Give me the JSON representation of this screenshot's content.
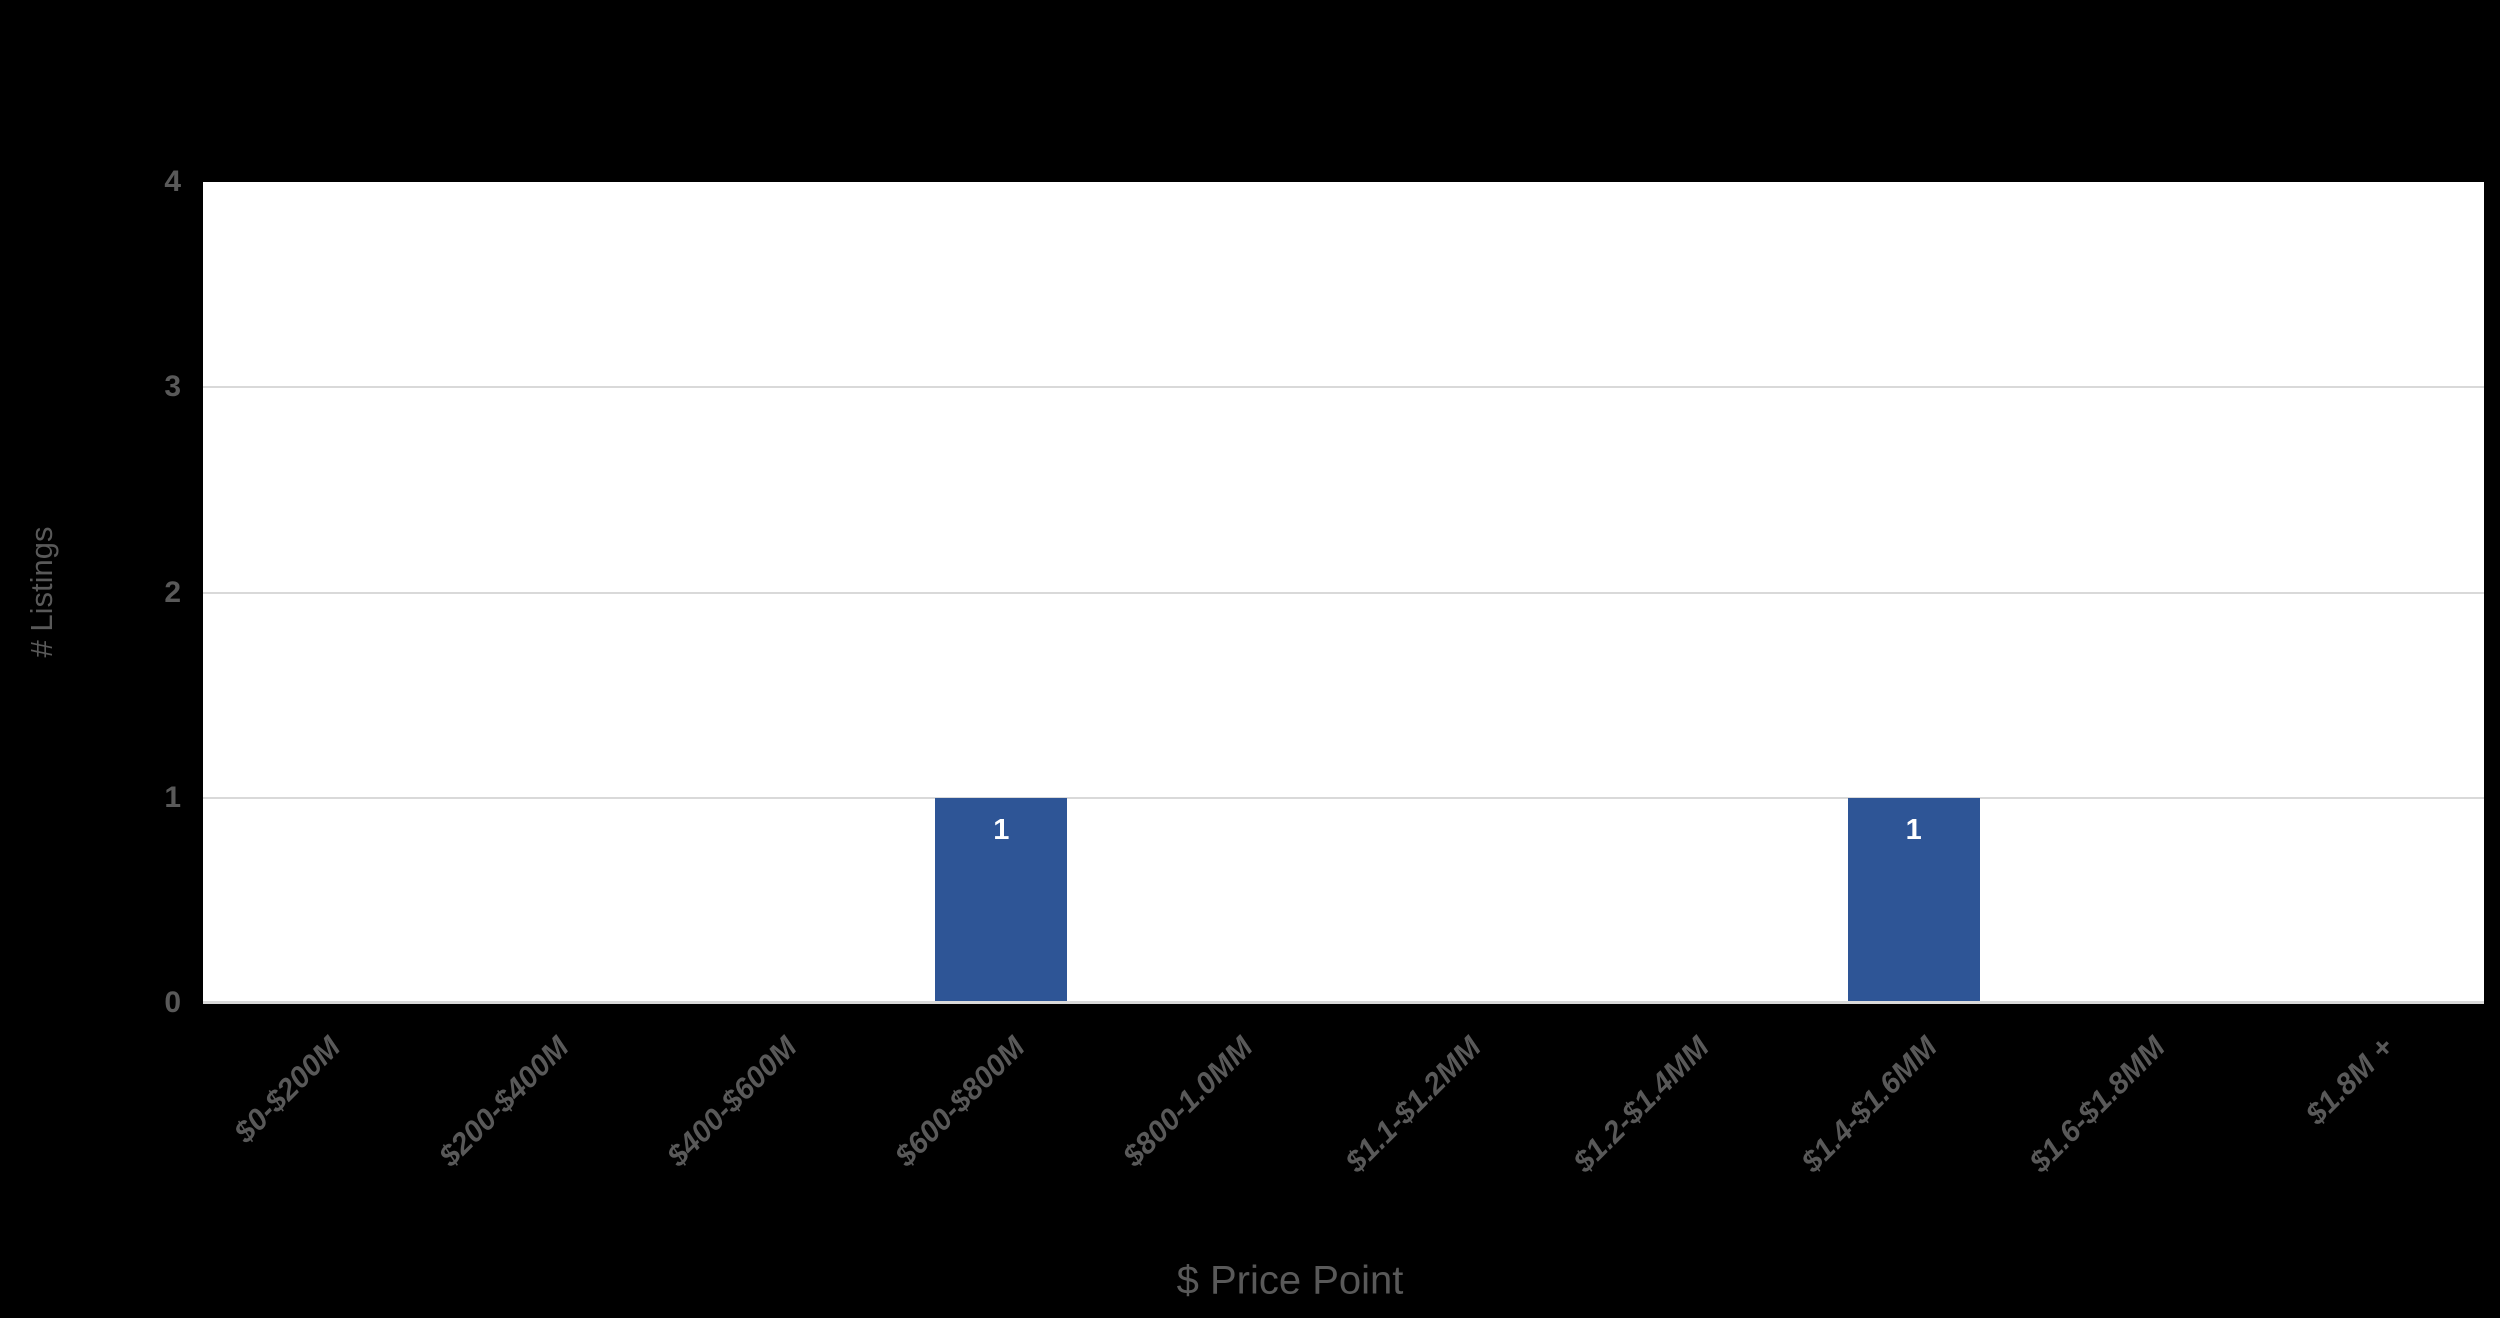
{
  "chart_data": {
    "type": "bar",
    "categories": [
      "$0-$200M",
      "$200-$400M",
      "$400-$600M",
      "$600-$800M",
      "$800-1.0MM",
      "$1.1-$1.2MM",
      "$1.2-$1.4MM",
      "$1.4-$1.6MM",
      "$1.6-$1.8MM",
      "$1.8M +"
    ],
    "values": [
      0,
      0,
      0,
      1,
      0,
      0,
      0,
      1,
      0,
      0
    ],
    "bar_value_labels": [
      "",
      "",
      "",
      "1",
      "",
      "",
      "",
      "1",
      "",
      ""
    ],
    "xlabel": "$ Price Point",
    "ylabel": "# Listings",
    "ylim": [
      0,
      4
    ],
    "yticks": [
      0,
      1,
      2,
      3,
      4
    ],
    "grid": "horizontal",
    "legend_position": "none",
    "x_tick_rotation_deg": 45
  },
  "colors": {
    "background": "#000000",
    "plot_background": "#FFFFFF",
    "bar_fill": "#2E5596",
    "gridline": "#D9D9D9",
    "axis_line": "#D9D9D9",
    "tick_text": "#595959",
    "axis_title_text": "#595959",
    "bar_label_text": "#FFFFFF"
  }
}
